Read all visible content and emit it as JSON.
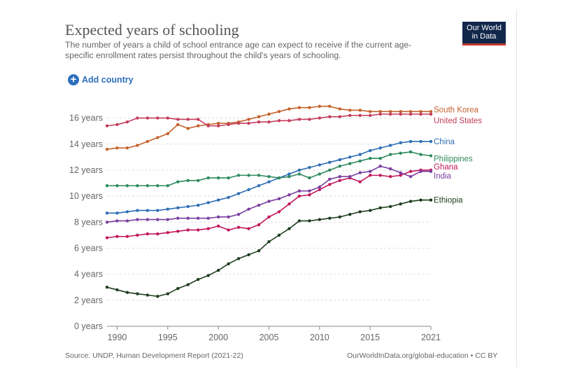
{
  "header": {
    "title": "Expected years of schooling",
    "subtitle": "The number of years a child of school entrance age can expect to receive if the current age-specific enrollment rates persist throughout the child's years of schooling.",
    "logo_line1": "Our World",
    "logo_line2": "in Data",
    "add_country": "Add country"
  },
  "footer": {
    "source": "Source: UNDP, Human Development Report (2021-22)",
    "credit": "OurWorldInData.org/global-education • CC BY"
  },
  "colors": {
    "South Korea": "#c4622d",
    "United States": "#c43d5e",
    "China": "#2f6eb5",
    "Philippines": "#2e8a5f",
    "Ghana": "#c2185b",
    "India": "#7b3fa0",
    "Ethiopia": "#1f3d1f"
  },
  "chart_data": {
    "type": "line",
    "title": "Expected years of schooling",
    "xlabel": "",
    "ylabel": "",
    "xlim": [
      1989,
      2021
    ],
    "ylim": [
      0,
      17
    ],
    "y_ticks": [
      0,
      2,
      4,
      6,
      8,
      10,
      12,
      14,
      16
    ],
    "y_tick_labels": [
      "0 years",
      "2 years",
      "4 years",
      "6 years",
      "8 years",
      "10 years",
      "12 years",
      "14 years",
      "16 years"
    ],
    "x_ticks": [
      1990,
      1995,
      2000,
      2005,
      2010,
      2015,
      2021
    ],
    "x_tick_labels": [
      "1990",
      "1995",
      "2000",
      "2005",
      "2010",
      "2015",
      "2021"
    ],
    "grid": "horizontal dashed",
    "x": [
      1989,
      1990,
      1991,
      1992,
      1993,
      1994,
      1995,
      1996,
      1997,
      1998,
      1999,
      2000,
      2001,
      2002,
      2003,
      2004,
      2005,
      2006,
      2007,
      2008,
      2009,
      2010,
      2011,
      2012,
      2013,
      2014,
      2015,
      2016,
      2017,
      2018,
      2019,
      2020,
      2021
    ],
    "series": [
      {
        "name": "South Korea",
        "label": "South Korea",
        "values": [
          13.6,
          13.7,
          13.7,
          13.9,
          14.2,
          14.5,
          14.8,
          15.5,
          15.2,
          15.4,
          15.5,
          15.6,
          15.6,
          15.7,
          15.9,
          16.1,
          16.3,
          16.5,
          16.7,
          16.8,
          16.8,
          16.9,
          16.9,
          16.7,
          16.6,
          16.6,
          16.5,
          16.5,
          16.5,
          16.5,
          16.5,
          16.5,
          16.5
        ]
      },
      {
        "name": "United States",
        "label": "United States",
        "values": [
          15.4,
          15.5,
          15.7,
          16.0,
          16.0,
          16.0,
          16.0,
          15.9,
          15.9,
          15.9,
          15.4,
          15.4,
          15.5,
          15.6,
          15.6,
          15.7,
          15.7,
          15.8,
          15.8,
          15.9,
          15.9,
          16.0,
          16.1,
          16.1,
          16.2,
          16.2,
          16.2,
          16.3,
          16.3,
          16.3,
          16.3,
          16.3,
          16.3
        ]
      },
      {
        "name": "China",
        "label": "China",
        "values": [
          8.7,
          8.7,
          8.8,
          8.9,
          8.9,
          8.9,
          9.0,
          9.1,
          9.2,
          9.3,
          9.5,
          9.7,
          9.9,
          10.2,
          10.5,
          10.8,
          11.1,
          11.4,
          11.7,
          12.0,
          12.2,
          12.4,
          12.6,
          12.8,
          13.0,
          13.2,
          13.5,
          13.7,
          13.9,
          14.1,
          14.2,
          14.2,
          14.2
        ]
      },
      {
        "name": "Philippines",
        "label": "Philippines",
        "values": [
          10.8,
          10.8,
          10.8,
          10.8,
          10.8,
          10.8,
          10.8,
          11.1,
          11.2,
          11.2,
          11.4,
          11.4,
          11.4,
          11.6,
          11.6,
          11.6,
          11.5,
          11.4,
          11.5,
          11.7,
          11.4,
          11.7,
          12.0,
          12.3,
          12.5,
          12.7,
          12.9,
          12.9,
          13.2,
          13.3,
          13.4,
          13.2,
          13.1
        ]
      },
      {
        "name": "Ghana",
        "label": "Ghana",
        "values": [
          6.8,
          6.9,
          6.9,
          7.0,
          7.1,
          7.1,
          7.2,
          7.3,
          7.4,
          7.4,
          7.5,
          7.7,
          7.4,
          7.6,
          7.5,
          7.8,
          8.4,
          8.8,
          9.4,
          10.0,
          10.1,
          10.5,
          10.9,
          11.2,
          11.4,
          11.1,
          11.6,
          11.6,
          11.5,
          11.6,
          11.9,
          12.0,
          12.0
        ]
      },
      {
        "name": "India",
        "label": "India",
        "values": [
          8.0,
          8.1,
          8.1,
          8.2,
          8.2,
          8.2,
          8.2,
          8.3,
          8.3,
          8.3,
          8.3,
          8.4,
          8.4,
          8.6,
          9.0,
          9.3,
          9.6,
          9.8,
          10.1,
          10.4,
          10.4,
          10.7,
          11.3,
          11.5,
          11.5,
          11.8,
          11.9,
          12.3,
          12.1,
          11.8,
          11.5,
          11.9,
          11.9
        ]
      },
      {
        "name": "Ethiopia",
        "label": "Ethiopia",
        "values": [
          3.0,
          2.8,
          2.6,
          2.5,
          2.4,
          2.3,
          2.5,
          2.9,
          3.2,
          3.6,
          3.9,
          4.3,
          4.8,
          5.2,
          5.5,
          5.8,
          6.5,
          7.0,
          7.5,
          8.1,
          8.1,
          8.2,
          8.3,
          8.4,
          8.6,
          8.8,
          8.9,
          9.1,
          9.2,
          9.4,
          9.6,
          9.7,
          9.7
        ]
      }
    ]
  }
}
